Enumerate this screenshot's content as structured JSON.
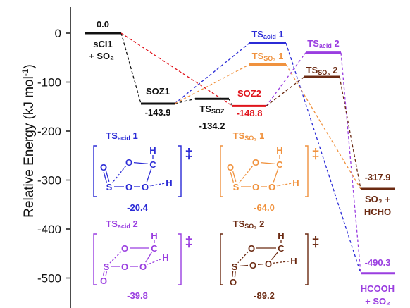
{
  "chart_data": {
    "type": "line",
    "ylabel_main": "Relative Energy (kJ mol",
    "ylabel_sup": "-1",
    "ylabel_end": ")",
    "ylim": [
      -560,
      40
    ],
    "yticks": [
      0,
      -100,
      -200,
      -300,
      -400,
      -500
    ],
    "colors": {
      "reactant": "#111111",
      "acid": "#2b2bd6",
      "so3": "#f0923e",
      "soz2": "#e0141c",
      "acid2": "#9a3ee0",
      "so3_2": "#6b2a12",
      "products_so3": "#6b2a12",
      "products_acid": "#9a3ee0"
    },
    "levels": [
      {
        "id": "sci1",
        "energy": 0.0,
        "value_label": "0.0",
        "name_lines": [
          "sCI1",
          "+ SO₂"
        ],
        "color": "#111111"
      },
      {
        "id": "soz1",
        "energy": -143.9,
        "value_label": "-143.9",
        "name_lines": [
          "SOZ1"
        ],
        "color": "#111111"
      },
      {
        "id": "tssoz",
        "energy": -134.2,
        "value_label": "-134.2",
        "name_main": "TS",
        "name_sub": "SOZ",
        "color": "#111111"
      },
      {
        "id": "soz2",
        "energy": -148.8,
        "value_label": "-148.8",
        "name_lines": [
          "SOZ2"
        ],
        "color": "#e0141c"
      },
      {
        "id": "tsacid1",
        "energy": -20.4,
        "name_main": "TS",
        "name_sub": "acid",
        "name_tail": " 1",
        "color": "#2b2bd6"
      },
      {
        "id": "tsso3_1",
        "energy": -64.0,
        "name_main": "TS",
        "name_sub": "SO₃",
        "name_tail": " 1",
        "color": "#f0923e"
      },
      {
        "id": "tsacid2",
        "energy": -39.8,
        "name_main": "TS",
        "name_sub": "acid",
        "name_tail": " 2",
        "color": "#9a3ee0"
      },
      {
        "id": "tsso3_2",
        "energy": -89.2,
        "name_main": "TS",
        "name_sub": "SO₃",
        "name_tail": " 2",
        "color": "#6b2a12"
      },
      {
        "id": "so3hcho",
        "energy": -317.9,
        "value_label": "-317.9",
        "name_lines": [
          "SO₃ +",
          "HCHO"
        ],
        "color": "#6b2a12"
      },
      {
        "id": "hcooh",
        "energy": -490.3,
        "value_label": "-490.3",
        "name_lines": [
          "HCOOH",
          "+ SO₂"
        ],
        "color": "#9a3ee0"
      }
    ],
    "connectors": [
      {
        "from": "sci1",
        "to": "soz1",
        "color": "#111111"
      },
      {
        "from": "sci1",
        "to": "soz2",
        "color": "#e0141c"
      },
      {
        "from": "soz1",
        "to": "tssoz",
        "color": "#111111"
      },
      {
        "from": "tssoz",
        "to": "soz2",
        "color": "#111111"
      },
      {
        "from": "soz1",
        "to": "tsacid1",
        "color": "#2b2bd6"
      },
      {
        "from": "soz1",
        "to": "tsso3_1",
        "color": "#f0923e"
      },
      {
        "from": "tsacid1",
        "to": "hcooh",
        "color": "#2b2bd6"
      },
      {
        "from": "tsso3_1",
        "to": "so3hcho",
        "color": "#f0923e"
      },
      {
        "from": "soz2",
        "to": "tsacid2",
        "color": "#9a3ee0"
      },
      {
        "from": "soz2",
        "to": "tsso3_2",
        "color": "#6b2a12"
      },
      {
        "from": "tsacid2",
        "to": "hcooh",
        "color": "#9a3ee0"
      },
      {
        "from": "tsso3_2",
        "to": "so3hcho",
        "color": "#6b2a12"
      }
    ],
    "structures": [
      {
        "id": "s_acid1",
        "title_main": "TS",
        "title_sub": "acid",
        "title_tail": " 1",
        "energy_label": "-20.4",
        "color": "#2b2bd6",
        "atoms": [
          "O",
          "S",
          "O",
          "O",
          "O",
          "C",
          "H",
          "H"
        ]
      },
      {
        "id": "s_so3_1",
        "title_main": "TS",
        "title_sub": "SO₃",
        "title_tail": " 1",
        "energy_label": "-64.0",
        "color": "#f0923e",
        "atoms": [
          "O",
          "S",
          "O",
          "O",
          "O",
          "C",
          "H",
          "H"
        ]
      },
      {
        "id": "s_acid2",
        "title_main": "TS",
        "title_sub": "acid",
        "title_tail": " 2",
        "energy_label": "-39.8",
        "color": "#9a3ee0",
        "atoms": [
          "O",
          "S",
          "O",
          "O",
          "O",
          "C",
          "H",
          "H"
        ]
      },
      {
        "id": "s_so3_2",
        "title_main": "TS",
        "title_sub": "SO₃",
        "title_tail": " 2",
        "energy_label": "-89.2",
        "color": "#6b2a12",
        "atoms": [
          "O",
          "S",
          "O",
          "O",
          "O",
          "C",
          "H",
          "H"
        ]
      }
    ],
    "ts_mark": "‡"
  }
}
